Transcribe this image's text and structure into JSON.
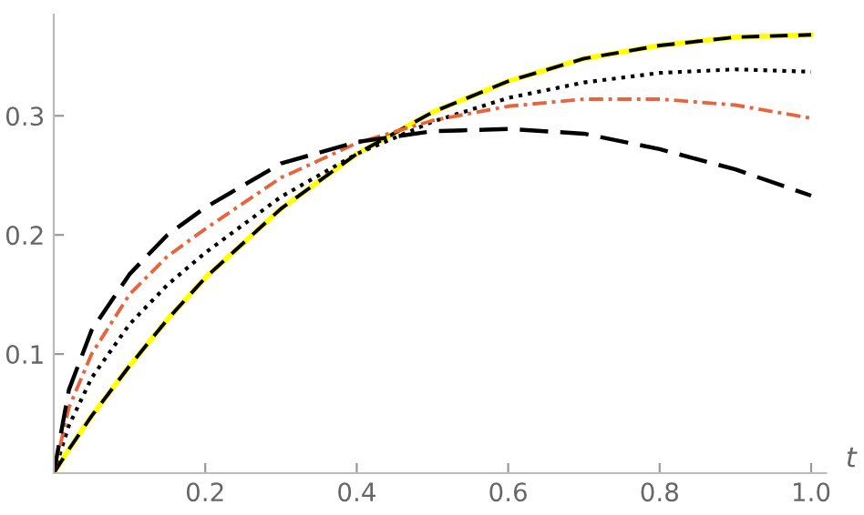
{
  "chart_data": {
    "type": "line",
    "xlabel": "t",
    "xlim": [
      0,
      1.02
    ],
    "ylim": [
      0,
      0.385
    ],
    "xticks": [
      {
        "value": 0.2,
        "label": "0.2"
      },
      {
        "value": 0.4,
        "label": "0.4"
      },
      {
        "value": 0.6,
        "label": "0.6"
      },
      {
        "value": 0.8,
        "label": "0.8"
      },
      {
        "value": 1.0,
        "label": "1.0"
      }
    ],
    "yticks": [
      0.1,
      0.2,
      0.3
    ],
    "x": [
      0,
      0.02,
      0.05,
      0.1,
      0.15,
      0.2,
      0.3,
      0.4,
      0.5,
      0.6,
      0.7,
      0.8,
      0.9,
      1.0
    ],
    "grid": false,
    "legend": false,
    "marker": "none",
    "series": [
      {
        "color": "#ffff00",
        "line_style": "solid",
        "values": [
          0,
          0.02,
          0.048,
          0.09,
          0.129,
          0.164,
          0.222,
          0.268,
          0.303,
          0.329,
          0.348,
          0.359,
          0.366,
          0.368
        ]
      },
      {
        "color": "#000000",
        "line_style": "dashed",
        "values": [
          0,
          0.02,
          0.048,
          0.09,
          0.129,
          0.164,
          0.222,
          0.268,
          0.303,
          0.329,
          0.348,
          0.359,
          0.366,
          0.368
        ]
      },
      {
        "color": "#000000",
        "line_style": "dotted",
        "values": [
          0,
          0.04,
          0.08,
          0.125,
          0.158,
          0.185,
          0.232,
          0.268,
          0.295,
          0.315,
          0.328,
          0.336,
          0.339,
          0.337
        ]
      },
      {
        "color": "#e8643c",
        "line_style": "dashdot",
        "values": [
          0,
          0.055,
          0.1,
          0.15,
          0.182,
          0.205,
          0.248,
          0.277,
          0.296,
          0.308,
          0.314,
          0.314,
          0.309,
          0.298
        ]
      },
      {
        "color": "#000000",
        "line_style": "longdash",
        "values": [
          0,
          0.07,
          0.12,
          0.167,
          0.2,
          0.223,
          0.26,
          0.278,
          0.287,
          0.289,
          0.285,
          0.272,
          0.255,
          0.233
        ]
      }
    ]
  }
}
